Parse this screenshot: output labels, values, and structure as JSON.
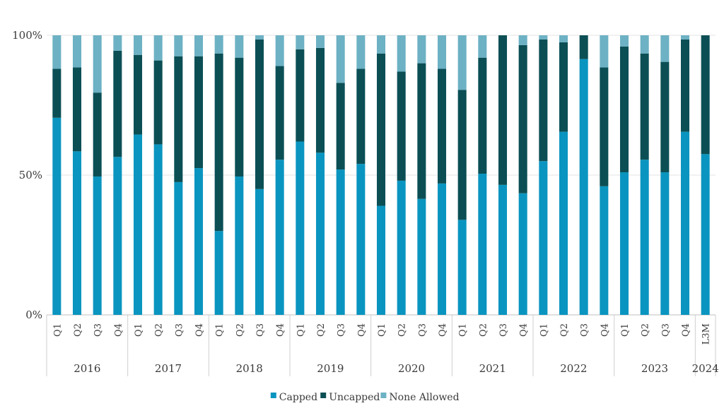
{
  "chart_data": {
    "type": "bar",
    "stacked": true,
    "percent": true,
    "ylim": [
      0,
      100
    ],
    "yticks": [
      {
        "value": 0,
        "label": "0%"
      },
      {
        "value": 50,
        "label": "50%"
      },
      {
        "value": 100,
        "label": "100%"
      }
    ],
    "grid": true,
    "legend_position": "bottom",
    "categories": [
      "Q1",
      "Q2",
      "Q3",
      "Q4",
      "Q1",
      "Q2",
      "Q3",
      "Q4",
      "Q1",
      "Q2",
      "Q3",
      "Q4",
      "Q1",
      "Q2",
      "Q3",
      "Q4",
      "Q1",
      "Q2",
      "Q3",
      "Q4",
      "Q1",
      "Q2",
      "Q3",
      "Q4",
      "Q1",
      "Q2",
      "Q3",
      "Q4",
      "Q1",
      "Q2",
      "Q3",
      "Q4",
      "L3M"
    ],
    "groups": [
      {
        "label": "2016",
        "count": 4
      },
      {
        "label": "2017",
        "count": 4
      },
      {
        "label": "2018",
        "count": 4
      },
      {
        "label": "2019",
        "count": 4
      },
      {
        "label": "2020",
        "count": 4
      },
      {
        "label": "2021",
        "count": 4
      },
      {
        "label": "2022",
        "count": 4
      },
      {
        "label": "2023",
        "count": 4
      },
      {
        "label": "2024",
        "count": 1
      }
    ],
    "series": [
      {
        "name": "Capped",
        "color": "#0a95c0",
        "values": [
          70.5,
          58.5,
          49.5,
          56.5,
          64.5,
          61,
          47.5,
          52.5,
          30,
          49.5,
          45,
          55.5,
          62,
          58,
          52,
          54,
          39,
          48,
          41.5,
          47,
          34,
          50.5,
          46.5,
          43.5,
          55,
          65.5,
          91.5,
          46,
          51,
          55.5,
          51,
          65.5,
          57.5
        ]
      },
      {
        "name": "Uncapped",
        "color": "#0b4f55",
        "values": [
          17.5,
          30,
          30,
          38,
          28.5,
          30,
          45,
          40,
          63.5,
          42.5,
          53.5,
          33.5,
          33,
          37.5,
          31,
          34,
          54.5,
          39,
          48.5,
          41,
          46.5,
          41.5,
          53.5,
          53,
          43.5,
          32,
          8.5,
          42.5,
          45,
          38,
          39.5,
          33,
          42.5
        ]
      },
      {
        "name": "None Allowed",
        "color": "#6db1c4",
        "values": [
          12,
          11.5,
          20.5,
          5.5,
          7,
          9,
          7.5,
          7.5,
          6.5,
          8,
          1.5,
          11,
          5,
          4.5,
          17,
          12,
          6.5,
          13,
          10,
          12,
          19.5,
          8,
          0,
          3.5,
          1.5,
          2.5,
          0,
          11.5,
          4,
          6.5,
          9.5,
          1.5,
          0
        ]
      }
    ]
  }
}
